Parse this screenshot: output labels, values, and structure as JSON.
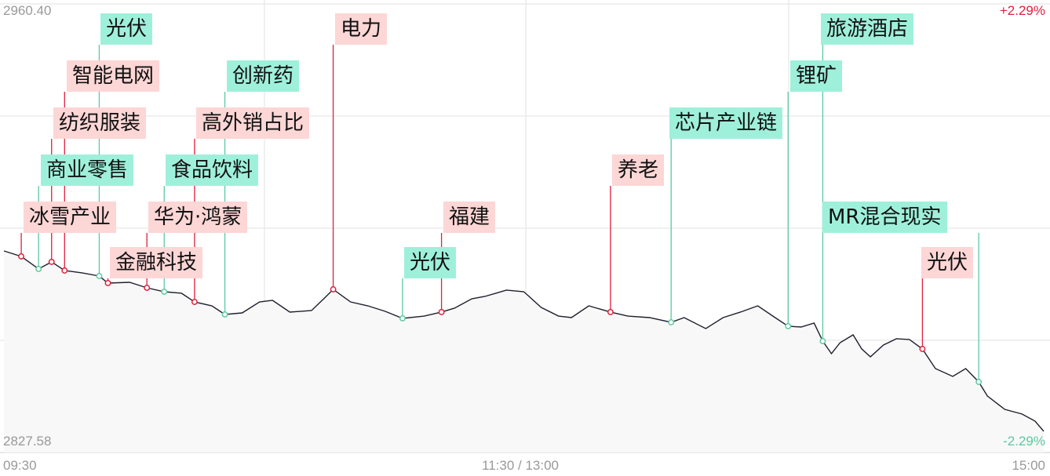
{
  "chart_data": {
    "type": "line",
    "y_top_label": "2960.40",
    "y_bottom_label": "2827.58",
    "pct_top_label": "+2.29%",
    "pct_bottom_label": "-2.29%",
    "ylim": [
      2827.58,
      2960.4
    ],
    "x_tick_labels": [
      "09:30",
      "11:30 / 13:00",
      "15:00"
    ],
    "grid": true,
    "colors": {
      "line": "#1f1f2e",
      "up": "#e0203a",
      "down": "#5cc9a0",
      "up_box": "#fdd6d6",
      "down_box": "#9ff0db",
      "fill": "#f8f8f8"
    },
    "series": [
      {
        "x": [
          "09:30",
          "09:34",
          "09:38",
          "09:41",
          "09:44",
          "09:48",
          "09:52",
          "09:54",
          "09:59",
          "10:03",
          "10:07",
          "10:11",
          "10:14",
          "10:18",
          "10:21",
          "10:25",
          "10:29",
          "10:32",
          "10:36",
          "10:41",
          "10:44",
          "10:46",
          "10:50",
          "10:54",
          "10:58",
          "11:02",
          "11:07",
          "11:11",
          "11:14",
          "11:18",
          "11:21",
          "11:26",
          "11:30",
          "13:04",
          "13:08",
          "13:11",
          "13:15",
          "13:20",
          "13:24",
          "13:29",
          "13:34",
          "13:37",
          "13:42",
          "13:46",
          "13:50",
          "13:54",
          "13:58",
          "14:01",
          "14:04",
          "14:07",
          "14:09",
          "14:11",
          "14:13",
          "14:16",
          "14:18",
          "14:20",
          "14:23",
          "14:26",
          "14:29",
          "14:32",
          "14:35",
          "14:39",
          "14:42",
          "14:45",
          "14:47",
          "14:51",
          "14:55",
          "14:58",
          "15:00"
        ],
        "values": [
          2887.26,
          2885.63,
          2881.92,
          2884.01,
          2881.45,
          2880.76,
          2879.83,
          2877.74,
          2877.97,
          2876.34,
          2875.18,
          2874.72,
          2872.16,
          2871.0,
          2868.45,
          2868.91,
          2872.16,
          2872.63,
          2869.15,
          2869.61,
          2873.32,
          2875.88,
          2872.16,
          2871.0,
          2869.38,
          2867.29,
          2867.98,
          2869.15,
          2870.31,
          2873.09,
          2873.79,
          2875.65,
          2875.18,
          2870.54,
          2867.98,
          2867.52,
          2871.0,
          2869.15,
          2867.98,
          2867.52,
          2866.13,
          2867.52,
          2864.27,
          2867.52,
          2869.15,
          2871.0,
          2867.52,
          2864.97,
          2864.73,
          2865.89,
          2860.55,
          2856.84,
          2860.09,
          2862.41,
          2858.23,
          2855.91,
          2859.39,
          2861.25,
          2861.02,
          2858.23,
          2852.43,
          2850.1,
          2852.43,
          2848.48,
          2844.3,
          2840.35,
          2838.96,
          2836.87,
          2833.85
        ]
      }
    ],
    "annotations": [
      {
        "label": "冰雪产业",
        "time": "09:34",
        "type": "up"
      },
      {
        "label": "商业零售",
        "time": "09:38",
        "type": "down"
      },
      {
        "label": "纺织服装",
        "time": "09:41",
        "type": "up"
      },
      {
        "label": "智能电网",
        "time": "09:44",
        "type": "up"
      },
      {
        "label": "光伏",
        "time": "09:52",
        "type": "down"
      },
      {
        "label": "金融科技",
        "time": "09:54",
        "type": "up"
      },
      {
        "label": "华为·鸿蒙",
        "time": "10:03",
        "type": "up"
      },
      {
        "label": "食品饮料",
        "time": "10:07",
        "type": "down"
      },
      {
        "label": "高外销占比",
        "time": "10:14",
        "type": "up"
      },
      {
        "label": "创新药",
        "time": "10:21",
        "type": "down"
      },
      {
        "label": "电力",
        "time": "10:46",
        "type": "up"
      },
      {
        "label": "光伏",
        "time": "11:02",
        "type": "down"
      },
      {
        "label": "福建",
        "time": "11:11",
        "type": "up"
      },
      {
        "label": "养老",
        "time": "13:20",
        "type": "up"
      },
      {
        "label": "芯片产业链",
        "time": "13:34",
        "type": "down"
      },
      {
        "label": "锂矿",
        "time": "14:01",
        "type": "down"
      },
      {
        "label": "旅游酒店",
        "time": "14:09",
        "type": "down"
      },
      {
        "label": "光伏",
        "time": "14:32",
        "type": "up"
      },
      {
        "label": "MR混合现实",
        "time": "14:45",
        "type": "down"
      }
    ]
  }
}
